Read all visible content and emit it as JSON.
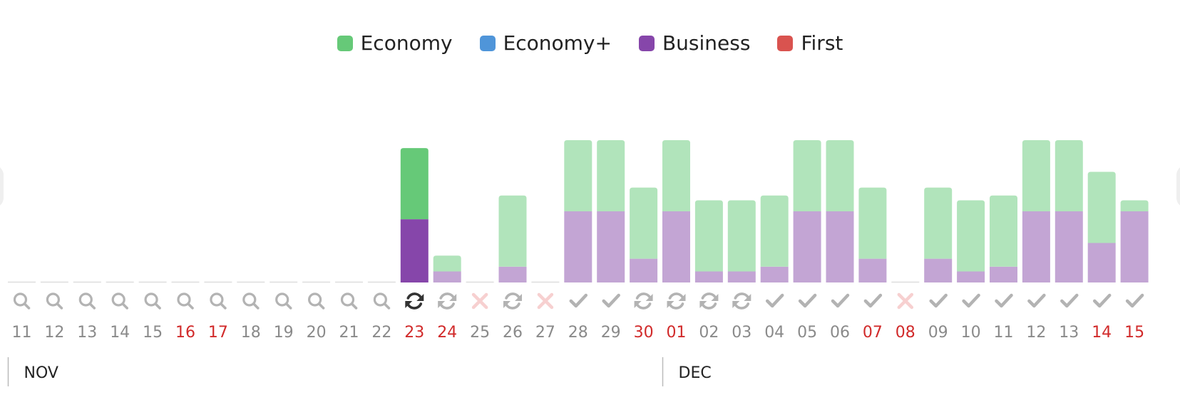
{
  "legend": [
    {
      "label": "Economy",
      "color": "#66c978"
    },
    {
      "label": "Economy+",
      "color": "#4f95d9"
    },
    {
      "label": "Business",
      "color": "#8646aa"
    },
    {
      "label": "First",
      "color": "#d9534f"
    }
  ],
  "colors": {
    "economy": "#66c978",
    "economy_light": "#b1e4bb",
    "business": "#8646aa",
    "business_light": "#c3a5d4",
    "icon_gray": "#b3b3b3",
    "icon_dark": "#333333",
    "icon_error": "#f7d0d0",
    "label_gray": "#8a8a8a",
    "label_red": "#d12a2a",
    "month_text": "#222222",
    "baseline": "#dddddd"
  },
  "chart_data": {
    "type": "bar",
    "stacked": true,
    "title": "",
    "xlabel": "",
    "ylabel": "",
    "ylim": [
      0,
      180
    ],
    "categories": [
      "11",
      "12",
      "13",
      "14",
      "15",
      "16",
      "17",
      "18",
      "19",
      "20",
      "21",
      "22",
      "23",
      "24",
      "25",
      "26",
      "27",
      "28",
      "29",
      "30",
      "01",
      "02",
      "03",
      "04",
      "05",
      "06",
      "07",
      "08",
      "09",
      "10",
      "11",
      "12",
      "13",
      "14",
      "15"
    ],
    "series": [
      {
        "name": "Business",
        "values": [
          0,
          0,
          0,
          0,
          0,
          0,
          0,
          0,
          0,
          0,
          0,
          0,
          80,
          14,
          0,
          20,
          0,
          90,
          90,
          30,
          90,
          14,
          14,
          20,
          90,
          90,
          30,
          0,
          30,
          14,
          20,
          90,
          90,
          50,
          90
        ]
      },
      {
        "name": "Economy",
        "values": [
          0,
          0,
          0,
          0,
          0,
          0,
          0,
          0,
          0,
          0,
          0,
          0,
          90,
          20,
          0,
          90,
          0,
          90,
          90,
          90,
          90,
          90,
          90,
          90,
          90,
          90,
          90,
          0,
          90,
          90,
          90,
          90,
          90,
          90,
          14
        ]
      }
    ],
    "highlighted_index": 12,
    "red_labels": [
      "16",
      "17",
      "23",
      "24",
      "30",
      "01",
      "07",
      "08",
      "14",
      "15"
    ],
    "status_icons": [
      "search",
      "search",
      "search",
      "search",
      "search",
      "search",
      "search",
      "search",
      "search",
      "search",
      "search",
      "search",
      "refresh-active",
      "refresh",
      "error",
      "refresh",
      "error",
      "check",
      "check",
      "refresh",
      "refresh",
      "refresh",
      "refresh",
      "check",
      "check",
      "check",
      "check",
      "error",
      "check",
      "check",
      "check",
      "check",
      "check",
      "check",
      "check"
    ],
    "months": [
      {
        "label": "NOV",
        "start_index": 0
      },
      {
        "label": "DEC",
        "start_index": 20
      }
    ]
  }
}
